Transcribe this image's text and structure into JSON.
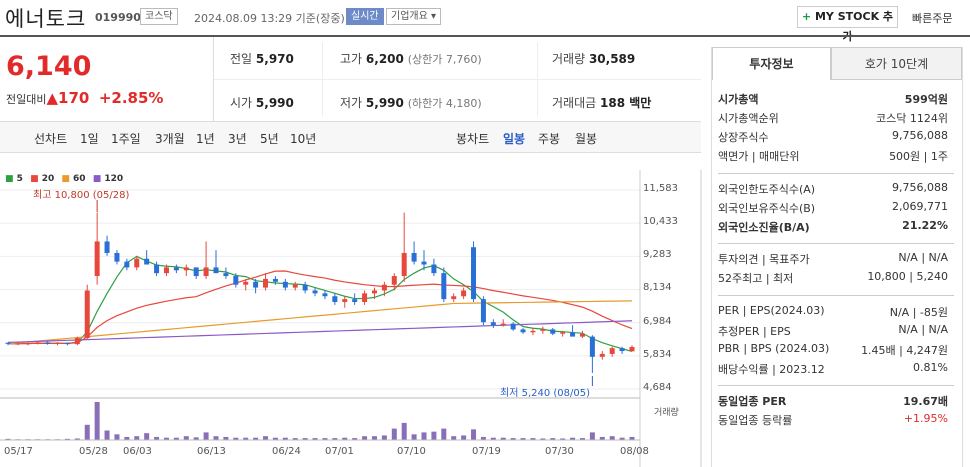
{
  "header": {
    "stock_name": "에너토크",
    "stock_code": "019990",
    "market": "코스닥",
    "datetime": "2024.08.09 13:29 기준(장중)",
    "realtime": "실시간",
    "company_info": "기업개요 ▾",
    "my_stock": "MY STOCK 추가",
    "my_stock_plus": "+",
    "quick_order": "빠른주문"
  },
  "quote": {
    "price": "6,140",
    "change_label": "전일대비",
    "change_arrow": "▲",
    "change": "170",
    "change_pct": "+2.85%",
    "prev_close_label": "전일",
    "prev_close": "5,970",
    "high_label": "고가",
    "high": "6,200",
    "upper_limit": "(상한가 7,760)",
    "volume_label": "거래량",
    "volume": "30,589",
    "open_label": "시가",
    "open": "5,990",
    "low_label": "저가",
    "low": "5,990",
    "lower_limit": "(하한가 4,180)",
    "value_label": "거래대금",
    "value": "188 백만"
  },
  "period_tabs": {
    "line_label": "선차트",
    "items": [
      "1일",
      "1주일",
      "3개월",
      "1년",
      "3년",
      "5년",
      "10년"
    ],
    "candle_label": "봉차트",
    "candle_items": [
      "일봉",
      "주봉",
      "월봉"
    ],
    "active_candle": "일봉"
  },
  "chart": {
    "legend": [
      {
        "name": "5",
        "color": "#2ea043"
      },
      {
        "name": "20",
        "color": "#e8473c"
      },
      {
        "name": "60",
        "color": "#e89b2c"
      },
      {
        "name": "120",
        "color": "#8a5ac8"
      }
    ],
    "max_label": "최고 10,800 (05/28)",
    "min_label": "최저 5,240 (08/05)",
    "volume_label": "거래량",
    "y_ticks": [
      "11,583",
      "10,433",
      "9,283",
      "8,134",
      "6,984",
      "5,834",
      "4,684"
    ],
    "x_ticks": [
      "05/17",
      "05/28",
      "06/03",
      "06/13",
      "06/24",
      "07/01",
      "07/10",
      "07/19",
      "07/30",
      "08/08"
    ]
  },
  "chart_data": {
    "type": "candlestick",
    "ylim": [
      4684,
      11583
    ],
    "y_ticks": [
      11583,
      10433,
      9283,
      8134,
      6984,
      5834,
      4684
    ],
    "x_ticks": [
      "05/17",
      "05/28",
      "06/03",
      "06/13",
      "06/24",
      "07/01",
      "07/10",
      "07/19",
      "07/30",
      "08/08"
    ],
    "candles": [
      [
        6290,
        6300,
        6200,
        6250
      ],
      [
        6250,
        6300,
        6200,
        6260
      ],
      [
        6260,
        6320,
        6200,
        6270
      ],
      [
        6270,
        6330,
        6230,
        6300
      ],
      [
        6300,
        6330,
        6220,
        6250
      ],
      [
        6250,
        6310,
        6200,
        6280
      ],
      [
        6280,
        6300,
        6200,
        6240
      ],
      [
        6240,
        6500,
        6200,
        6450
      ],
      [
        6450,
        8300,
        6400,
        8100
      ],
      [
        8600,
        10800,
        8300,
        9800
      ],
      [
        9800,
        10000,
        9300,
        9400
      ],
      [
        9400,
        9500,
        9000,
        9100
      ],
      [
        9100,
        9200,
        8800,
        8900
      ],
      [
        8900,
        9300,
        8800,
        9200
      ],
      [
        9200,
        9500,
        9000,
        9000
      ],
      [
        9000,
        9100,
        8600,
        8700
      ],
      [
        8700,
        9000,
        8600,
        8900
      ],
      [
        8900,
        9000,
        8700,
        8800
      ],
      [
        8800,
        9000,
        8600,
        8900
      ],
      [
        8900,
        8900,
        8500,
        8600
      ],
      [
        8600,
        9800,
        8500,
        8900
      ],
      [
        8900,
        9500,
        8700,
        8700
      ],
      [
        8700,
        8900,
        8500,
        8600
      ],
      [
        8600,
        8700,
        8200,
        8300
      ],
      [
        8300,
        8500,
        8100,
        8400
      ],
      [
        8400,
        8500,
        8000,
        8200
      ],
      [
        8200,
        8700,
        8100,
        8500
      ],
      [
        8500,
        8600,
        8300,
        8400
      ],
      [
        8400,
        8500,
        8100,
        8200
      ],
      [
        8200,
        8400,
        8100,
        8300
      ],
      [
        8300,
        8400,
        8000,
        8100
      ],
      [
        8100,
        8200,
        7900,
        8000
      ],
      [
        8000,
        8100,
        7800,
        7900
      ],
      [
        7900,
        8000,
        7600,
        7700
      ],
      [
        7700,
        7900,
        7500,
        7800
      ],
      [
        7800,
        8000,
        7600,
        7700
      ],
      [
        7700,
        8100,
        7600,
        8000
      ],
      [
        8000,
        8200,
        7800,
        8100
      ],
      [
        8100,
        8400,
        7900,
        8300
      ],
      [
        8300,
        8700,
        8100,
        8600
      ],
      [
        8600,
        10800,
        8400,
        9400
      ],
      [
        9400,
        9800,
        9000,
        9100
      ],
      [
        9100,
        9500,
        8800,
        9000
      ],
      [
        9000,
        9200,
        8600,
        8700
      ],
      [
        8700,
        8900,
        7700,
        7800
      ],
      [
        7800,
        8000,
        7700,
        7900
      ],
      [
        7900,
        8200,
        7800,
        8100
      ],
      [
        9600,
        9800,
        7700,
        7800
      ],
      [
        7800,
        7900,
        6900,
        7000
      ],
      [
        7000,
        7100,
        6800,
        6900
      ],
      [
        6900,
        7100,
        6850,
        6950
      ],
      [
        6950,
        7000,
        6700,
        6750
      ],
      [
        6750,
        6800,
        6600,
        6650
      ],
      [
        6650,
        6800,
        6550,
        6700
      ],
      [
        6700,
        6850,
        6600,
        6750
      ],
      [
        6750,
        6800,
        6550,
        6600
      ],
      [
        6600,
        6700,
        6500,
        6650
      ],
      [
        6650,
        6900,
        6550,
        6500
      ],
      [
        6500,
        6700,
        6450,
        6600
      ],
      [
        6500,
        6550,
        5240,
        5800
      ],
      [
        5800,
        6000,
        5700,
        5900
      ],
      [
        5900,
        6150,
        5800,
        6100
      ],
      [
        6100,
        6150,
        5900,
        6000
      ],
      [
        5990,
        6200,
        5990,
        6140
      ]
    ],
    "volumes": [
      3,
      2,
      2,
      2,
      2,
      2,
      3,
      4,
      40,
      100,
      25,
      15,
      8,
      10,
      18,
      8,
      6,
      6,
      10,
      7,
      20,
      10,
      8,
      6,
      6,
      6,
      10,
      6,
      6,
      5,
      5,
      5,
      5,
      5,
      6,
      5,
      10,
      10,
      12,
      30,
      45,
      15,
      20,
      22,
      30,
      10,
      12,
      28,
      8,
      6,
      6,
      5,
      5,
      5,
      4,
      5,
      4,
      6,
      5,
      20,
      8,
      10,
      6,
      8
    ]
  },
  "info_panel": {
    "tabs": [
      "투자정보",
      "호가 10단계"
    ],
    "rows1": [
      {
        "label": "시가총액",
        "value": "599억원"
      },
      {
        "label": "시가총액순위",
        "value": "코스닥 1124위"
      },
      {
        "label": "상장주식수",
        "value": "9,756,088"
      },
      {
        "label": "액면가 | 매매단위",
        "value": "500원 | 1주"
      }
    ],
    "rows2": [
      {
        "label": "외국인한도주식수(A)",
        "value": "9,756,088"
      },
      {
        "label": "외국인보유주식수(B)",
        "value": "2,069,771"
      },
      {
        "label": "외국인소진율(B/A)",
        "value": "21.22%"
      }
    ],
    "rows3": [
      {
        "label": "투자의견 | 목표주가",
        "value": "N/A | N/A"
      },
      {
        "label": "52주최고 | 최저",
        "value": "10,800 | 5,240"
      }
    ],
    "rows4": [
      {
        "label": "PER | EPS(2024.03)",
        "value": "N/A | -85원"
      },
      {
        "label": "추정PER | EPS",
        "value": "N/A | N/A"
      },
      {
        "label": "PBR | BPS (2024.03)",
        "value": "1.45배 | 4,247원"
      },
      {
        "label": "배당수익률 | 2023.12",
        "value": "0.81%"
      }
    ],
    "rows5": [
      {
        "label": "동일업종 PER",
        "value": "19.67배"
      },
      {
        "label": "동일업종 등락률",
        "value": "+1.95%"
      }
    ]
  }
}
